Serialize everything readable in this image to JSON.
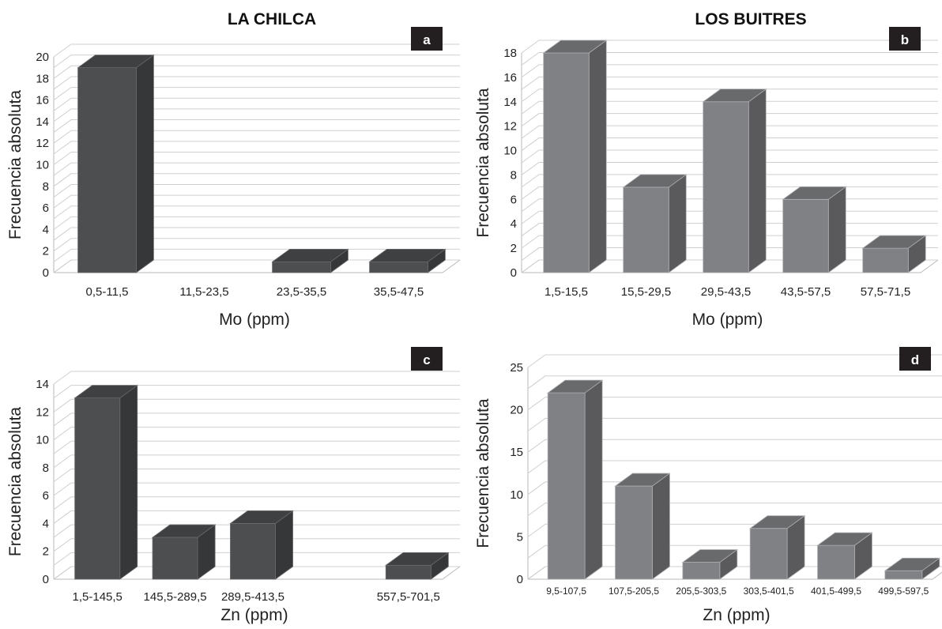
{
  "column_titles": [
    "LA CHILCA",
    "LOS BUITRES"
  ],
  "chart_data": [
    {
      "panel": "a",
      "type": "bar",
      "categories": [
        "0,5-11,5",
        "11,5-23,5",
        "23,5-35,5",
        "35,5-47,5"
      ],
      "values": [
        19,
        0,
        1,
        1
      ],
      "xlabel": "Mo (ppm)",
      "ylabel": "Frecuencia absoluta",
      "ylim": [
        0,
        20
      ],
      "yticks": [
        0,
        2,
        4,
        6,
        8,
        10,
        12,
        14,
        16,
        18,
        20
      ],
      "bar_color": "#4d4e50",
      "grid": true
    },
    {
      "panel": "b",
      "type": "bar",
      "categories": [
        "1,5-15,5",
        "15,5-29,5",
        "29,5-43,5",
        "43,5-57,5",
        "57,5-71,5"
      ],
      "values": [
        18,
        7,
        14,
        6,
        2
      ],
      "xlabel": "Mo (ppm)",
      "ylabel": "Frecuencia absoluta",
      "ylim": [
        0,
        18
      ],
      "yticks": [
        0,
        2,
        4,
        6,
        8,
        10,
        12,
        14,
        16,
        18
      ],
      "bar_color": "#808184",
      "grid": true
    },
    {
      "panel": "c",
      "type": "bar",
      "categories": [
        "1,5-145,5",
        "145,5-289,5",
        "289,5-413,5",
        "",
        "557,5-701,5"
      ],
      "values": [
        13,
        3,
        4,
        0,
        1
      ],
      "xlabel": "Zn (ppm)",
      "ylabel": "Frecuencia absoluta",
      "ylim": [
        0,
        14
      ],
      "yticks": [
        0,
        2,
        4,
        6,
        8,
        10,
        12,
        14
      ],
      "bar_color": "#4d4e50",
      "grid": true
    },
    {
      "panel": "d",
      "type": "bar",
      "categories": [
        "9,5-107,5",
        "107,5-205,5",
        "205,5-303,5",
        "303,5-401,5",
        "401,5-499,5",
        "499,5-597,5"
      ],
      "values": [
        22,
        11,
        2,
        6,
        4,
        1
      ],
      "xlabel": "Zn (ppm)",
      "ylabel": "Frecuencia absoluta",
      "ylim": [
        0,
        25
      ],
      "yticks": [
        0,
        5,
        10,
        15,
        20,
        25
      ],
      "bar_color": "#808184",
      "grid": true
    }
  ]
}
